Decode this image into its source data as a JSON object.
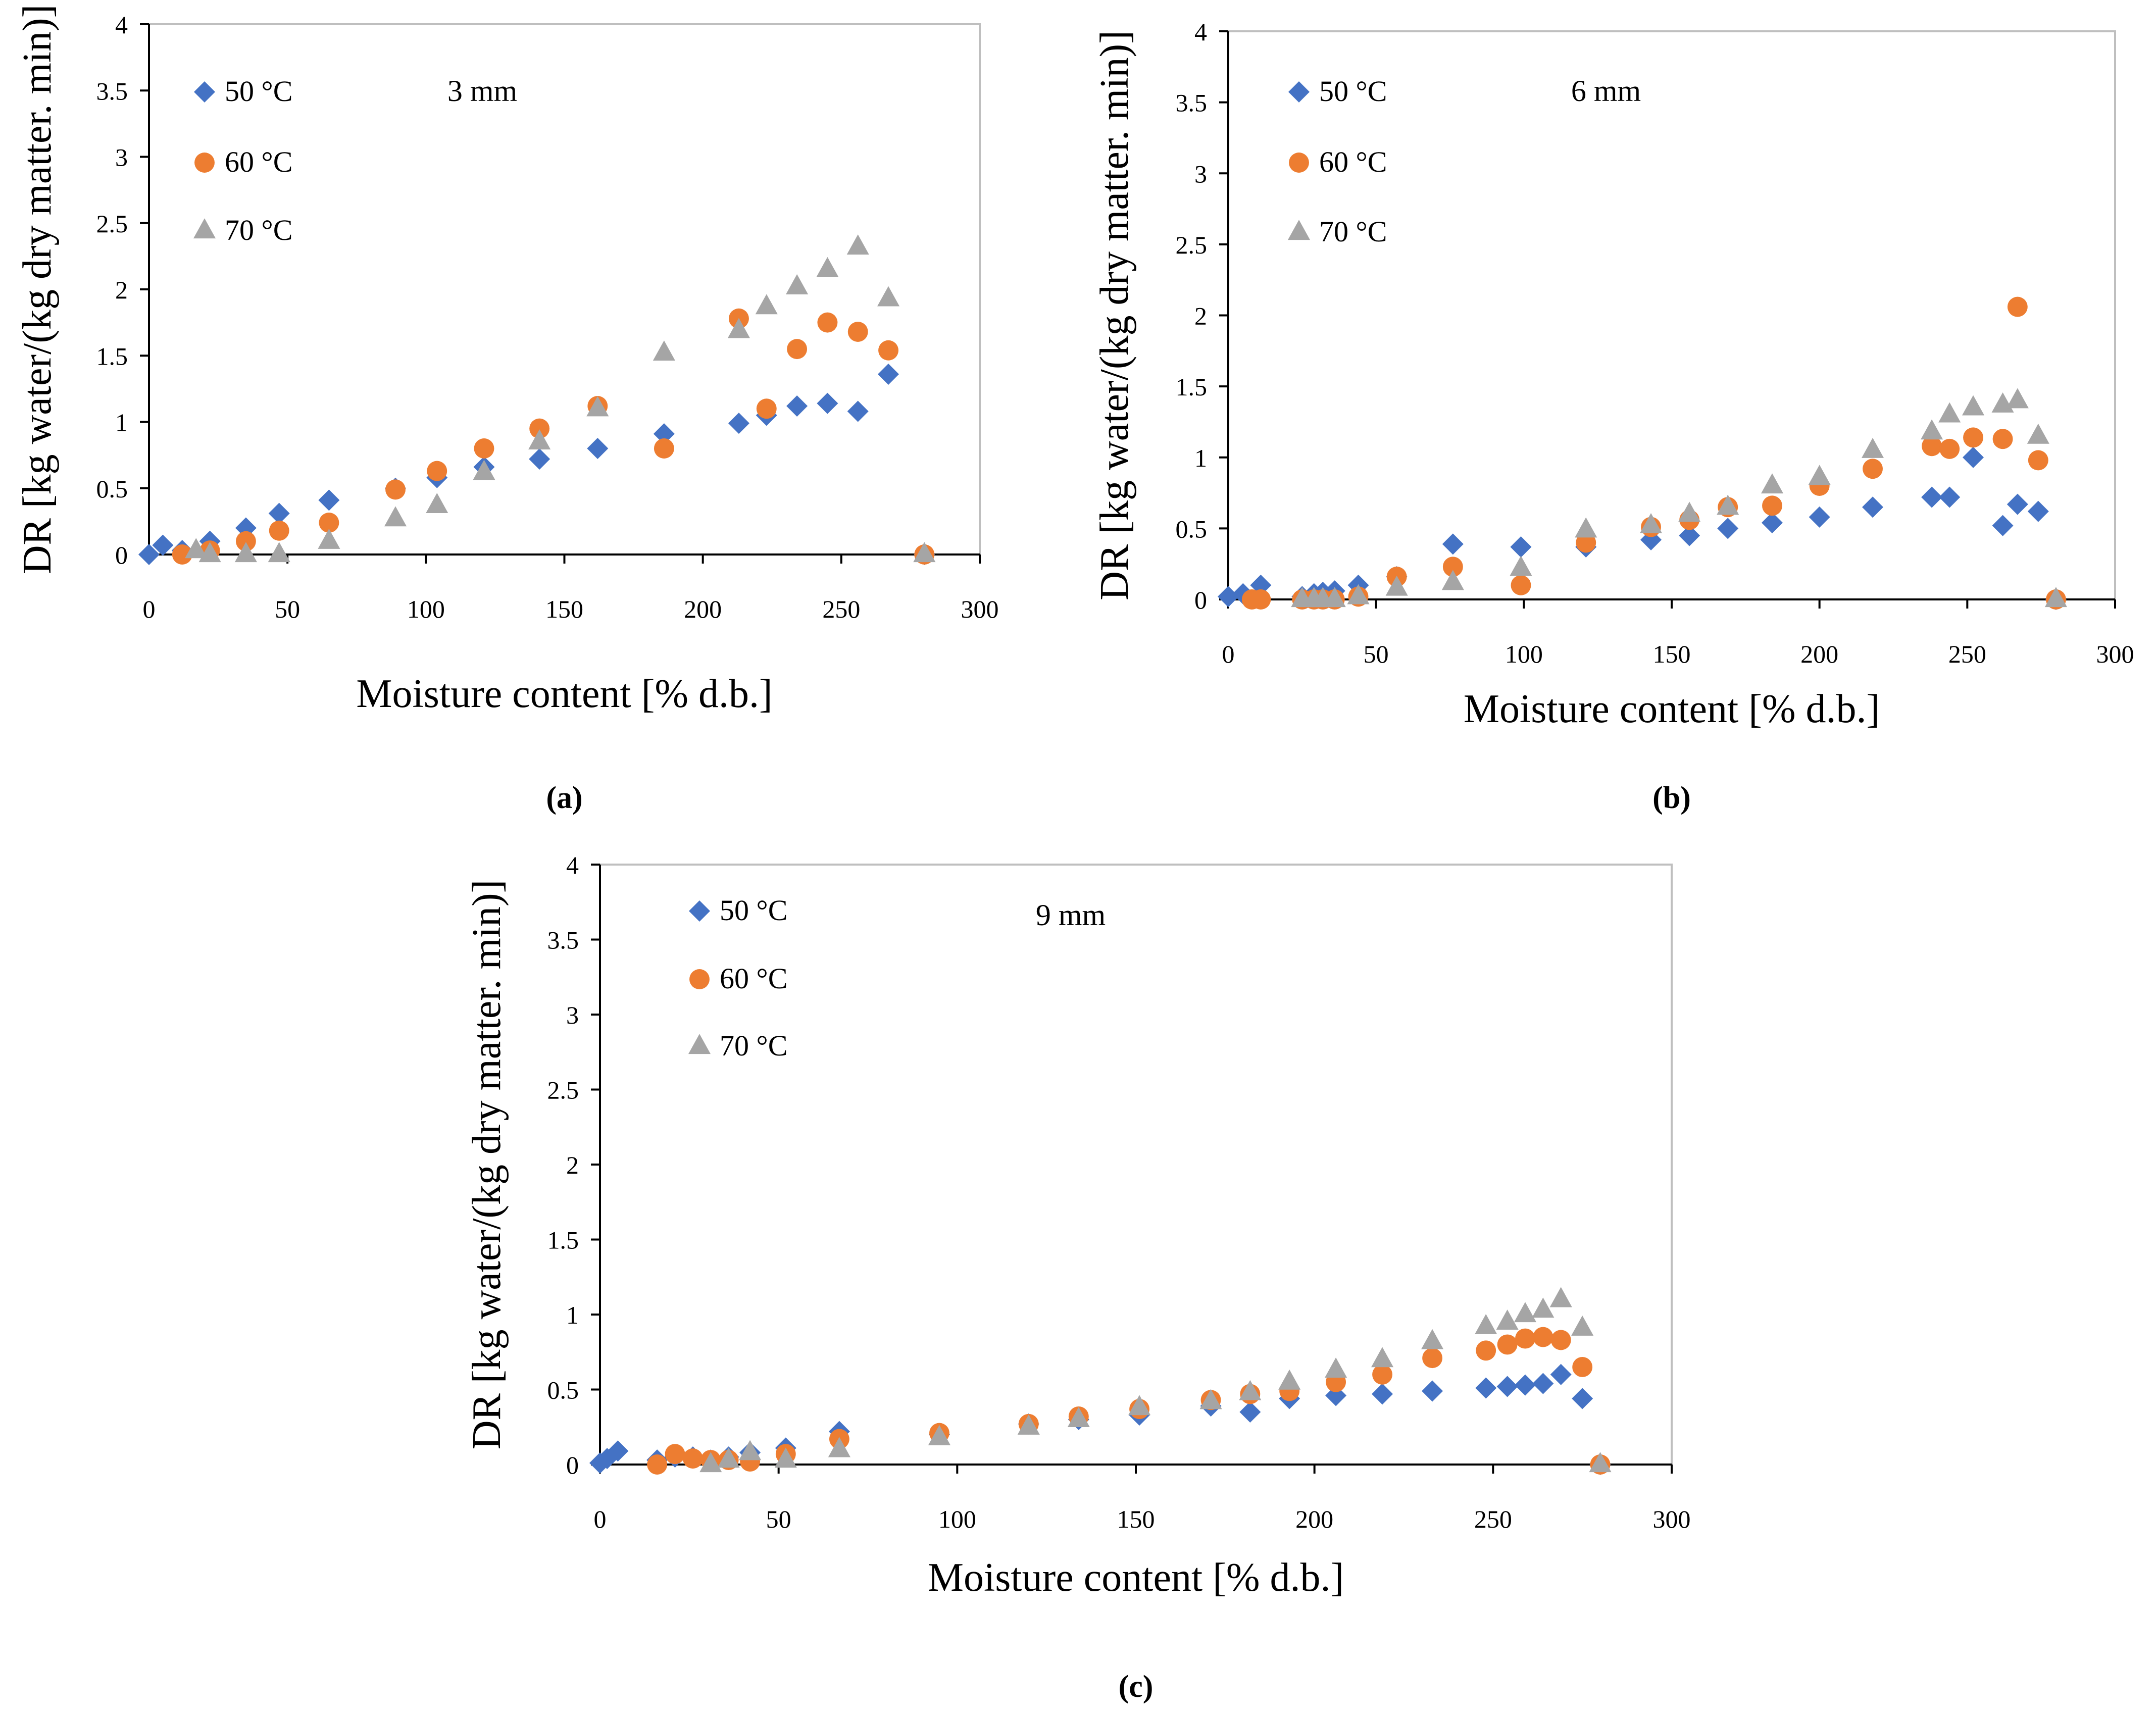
{
  "chart_data": [
    {
      "type": "scatter",
      "panel_label": "(a)",
      "annotation": "3 mm",
      "xlabel": "Moisture content [% d.b.]",
      "ylabel": "DR [kg water/(kg dry matter. min)]",
      "xlim": [
        0,
        300
      ],
      "ylim": [
        0,
        4
      ],
      "xticks": [
        "0",
        "50",
        "100",
        "150",
        "200",
        "250",
        "300"
      ],
      "yticks": [
        "0",
        "0.5",
        "1",
        "1.5",
        "2",
        "2.5",
        "3",
        "3.5",
        "4"
      ],
      "grid": false,
      "legend_position": "top-left",
      "series": [
        {
          "name": "50 °C",
          "color": "#4472C4",
          "marker": "diamond",
          "points": [
            [
              0,
              0.0
            ],
            [
              5,
              0.07
            ],
            [
              12,
              0.03
            ],
            [
              22,
              0.1
            ],
            [
              35,
              0.2
            ],
            [
              47,
              0.31
            ],
            [
              65,
              0.41
            ],
            [
              89,
              0.5
            ],
            [
              104,
              0.58
            ],
            [
              121,
              0.66
            ],
            [
              141,
              0.72
            ],
            [
              162,
              0.8
            ],
            [
              186,
              0.91
            ],
            [
              213,
              0.99
            ],
            [
              223,
              1.05
            ],
            [
              234,
              1.12
            ],
            [
              245,
              1.14
            ],
            [
              256,
              1.08
            ],
            [
              267,
              1.36
            ],
            [
              280,
              0.0
            ]
          ]
        },
        {
          "name": "60 °C",
          "color": "#ED7D31",
          "marker": "circle",
          "points": [
            [
              12,
              0.0
            ],
            [
              22,
              0.03
            ],
            [
              35,
              0.1
            ],
            [
              47,
              0.18
            ],
            [
              65,
              0.24
            ],
            [
              89,
              0.49
            ],
            [
              104,
              0.63
            ],
            [
              121,
              0.8
            ],
            [
              141,
              0.95
            ],
            [
              162,
              1.12
            ],
            [
              186,
              0.8
            ],
            [
              213,
              1.78
            ],
            [
              223,
              1.1
            ],
            [
              234,
              1.55
            ],
            [
              245,
              1.75
            ],
            [
              256,
              1.68
            ],
            [
              267,
              1.54
            ],
            [
              280,
              0.0
            ]
          ]
        },
        {
          "name": "70 °C",
          "color": "#A5A5A5",
          "marker": "triangle",
          "points": [
            [
              17,
              0.03
            ],
            [
              22,
              0.0
            ],
            [
              35,
              0.0
            ],
            [
              47,
              0.0
            ],
            [
              65,
              0.1
            ],
            [
              89,
              0.27
            ],
            [
              104,
              0.37
            ],
            [
              121,
              0.62
            ],
            [
              141,
              0.85
            ],
            [
              162,
              1.1
            ],
            [
              186,
              1.52
            ],
            [
              213,
              1.69
            ],
            [
              223,
              1.87
            ],
            [
              234,
              2.02
            ],
            [
              245,
              2.15
            ],
            [
              256,
              2.32
            ],
            [
              267,
              1.93
            ],
            [
              280,
              0.0
            ]
          ]
        }
      ]
    },
    {
      "type": "scatter",
      "panel_label": "(b)",
      "annotation": "6 mm",
      "xlabel": "Moisture content [% d.b.]",
      "ylabel": "DR [kg water/(kg dry matter. min)]",
      "xlim": [
        0,
        300
      ],
      "ylim": [
        0,
        4
      ],
      "xticks": [
        "0",
        "50",
        "100",
        "150",
        "200",
        "250",
        "300"
      ],
      "yticks": [
        "0",
        "0.5",
        "1",
        "1.5",
        "2",
        "2.5",
        "3",
        "3.5",
        "4"
      ],
      "grid": false,
      "legend_position": "top-left",
      "series": [
        {
          "name": "50 °C",
          "color": "#4472C4",
          "marker": "diamond",
          "points": [
            [
              0,
              0.02
            ],
            [
              5,
              0.04
            ],
            [
              11,
              0.1
            ],
            [
              25,
              0.02
            ],
            [
              29,
              0.04
            ],
            [
              32,
              0.05
            ],
            [
              36,
              0.06
            ],
            [
              44,
              0.1
            ],
            [
              57,
              0.16
            ],
            [
              76,
              0.39
            ],
            [
              99,
              0.37
            ],
            [
              121,
              0.37
            ],
            [
              143,
              0.42
            ],
            [
              156,
              0.45
            ],
            [
              169,
              0.5
            ],
            [
              184,
              0.54
            ],
            [
              200,
              0.58
            ],
            [
              218,
              0.65
            ],
            [
              238,
              0.72
            ],
            [
              244,
              0.72
            ],
            [
              252,
              1.0
            ],
            [
              262,
              0.52
            ],
            [
              267,
              0.67
            ],
            [
              274,
              0.62
            ],
            [
              280,
              0.0
            ]
          ]
        },
        {
          "name": "60 °C",
          "color": "#ED7D31",
          "marker": "circle",
          "points": [
            [
              8,
              0.0
            ],
            [
              11,
              0.0
            ],
            [
              25,
              0.0
            ],
            [
              29,
              0.0
            ],
            [
              32,
              0.0
            ],
            [
              36,
              0.0
            ],
            [
              44,
              0.02
            ],
            [
              57,
              0.16
            ],
            [
              76,
              0.23
            ],
            [
              99,
              0.1
            ],
            [
              121,
              0.4
            ],
            [
              143,
              0.51
            ],
            [
              156,
              0.56
            ],
            [
              169,
              0.65
            ],
            [
              184,
              0.66
            ],
            [
              200,
              0.8
            ],
            [
              218,
              0.92
            ],
            [
              238,
              1.08
            ],
            [
              244,
              1.06
            ],
            [
              252,
              1.14
            ],
            [
              262,
              1.13
            ],
            [
              267,
              2.06
            ],
            [
              274,
              0.98
            ],
            [
              280,
              0.0
            ]
          ]
        },
        {
          "name": "70 °C",
          "color": "#A5A5A5",
          "marker": "triangle",
          "points": [
            [
              25,
              0.0
            ],
            [
              29,
              0.0
            ],
            [
              32,
              0.0
            ],
            [
              36,
              0.0
            ],
            [
              44,
              0.02
            ],
            [
              57,
              0.08
            ],
            [
              76,
              0.12
            ],
            [
              99,
              0.22
            ],
            [
              121,
              0.49
            ],
            [
              143,
              0.52
            ],
            [
              156,
              0.6
            ],
            [
              169,
              0.65
            ],
            [
              184,
              0.8
            ],
            [
              200,
              0.86
            ],
            [
              218,
              1.05
            ],
            [
              238,
              1.18
            ],
            [
              244,
              1.3
            ],
            [
              252,
              1.35
            ],
            [
              262,
              1.37
            ],
            [
              267,
              1.4
            ],
            [
              274,
              1.15
            ],
            [
              280,
              0.0
            ]
          ]
        }
      ]
    },
    {
      "type": "scatter",
      "panel_label": "(c)",
      "annotation": "9 mm",
      "xlabel": "Moisture content [% d.b.]",
      "ylabel": "DR [kg water/(kg dry matter. min)]",
      "xlim": [
        0,
        300
      ],
      "ylim": [
        0,
        4
      ],
      "xticks": [
        "0",
        "50",
        "100",
        "150",
        "200",
        "250",
        "300"
      ],
      "yticks": [
        "0",
        "0.5",
        "1",
        "1.5",
        "2",
        "2.5",
        "3",
        "3.5",
        "4"
      ],
      "grid": false,
      "legend_position": "top-left",
      "series": [
        {
          "name": "50 °C",
          "color": "#4472C4",
          "marker": "diamond",
          "points": [
            [
              0,
              0.01
            ],
            [
              2,
              0.04
            ],
            [
              5,
              0.09
            ],
            [
              16,
              0.03
            ],
            [
              21,
              0.05
            ],
            [
              26,
              0.05
            ],
            [
              31,
              0.03
            ],
            [
              36,
              0.05
            ],
            [
              42,
              0.08
            ],
            [
              52,
              0.11
            ],
            [
              67,
              0.22
            ],
            [
              95,
              0.2
            ],
            [
              120,
              0.27
            ],
            [
              134,
              0.3
            ],
            [
              151,
              0.33
            ],
            [
              171,
              0.39
            ],
            [
              182,
              0.35
            ],
            [
              193,
              0.44
            ],
            [
              206,
              0.46
            ],
            [
              219,
              0.47
            ],
            [
              233,
              0.49
            ],
            [
              248,
              0.51
            ],
            [
              254,
              0.52
            ],
            [
              259,
              0.53
            ],
            [
              264,
              0.54
            ],
            [
              269,
              0.6
            ],
            [
              275,
              0.44
            ],
            [
              280,
              0.0
            ]
          ]
        },
        {
          "name": "60 °C",
          "color": "#ED7D31",
          "marker": "circle",
          "points": [
            [
              16,
              0.0
            ],
            [
              21,
              0.07
            ],
            [
              26,
              0.04
            ],
            [
              31,
              0.03
            ],
            [
              36,
              0.03
            ],
            [
              42,
              0.02
            ],
            [
              52,
              0.07
            ],
            [
              67,
              0.17
            ],
            [
              95,
              0.21
            ],
            [
              120,
              0.27
            ],
            [
              134,
              0.32
            ],
            [
              151,
              0.37
            ],
            [
              171,
              0.43
            ],
            [
              182,
              0.47
            ],
            [
              193,
              0.49
            ],
            [
              206,
              0.55
            ],
            [
              219,
              0.6
            ],
            [
              233,
              0.71
            ],
            [
              248,
              0.76
            ],
            [
              254,
              0.8
            ],
            [
              259,
              0.84
            ],
            [
              264,
              0.85
            ],
            [
              269,
              0.83
            ],
            [
              275,
              0.65
            ],
            [
              280,
              0.0
            ]
          ]
        },
        {
          "name": "70 °C",
          "color": "#A5A5A5",
          "marker": "triangle",
          "points": [
            [
              31,
              0.0
            ],
            [
              36,
              0.03
            ],
            [
              42,
              0.08
            ],
            [
              52,
              0.03
            ],
            [
              67,
              0.1
            ],
            [
              95,
              0.18
            ],
            [
              120,
              0.25
            ],
            [
              134,
              0.3
            ],
            [
              151,
              0.38
            ],
            [
              171,
              0.42
            ],
            [
              182,
              0.48
            ],
            [
              193,
              0.55
            ],
            [
              206,
              0.63
            ],
            [
              219,
              0.7
            ],
            [
              233,
              0.82
            ],
            [
              248,
              0.92
            ],
            [
              254,
              0.95
            ],
            [
              259,
              1.0
            ],
            [
              264,
              1.03
            ],
            [
              269,
              1.1
            ],
            [
              275,
              0.91
            ],
            [
              280,
              0.0
            ]
          ]
        }
      ]
    }
  ]
}
